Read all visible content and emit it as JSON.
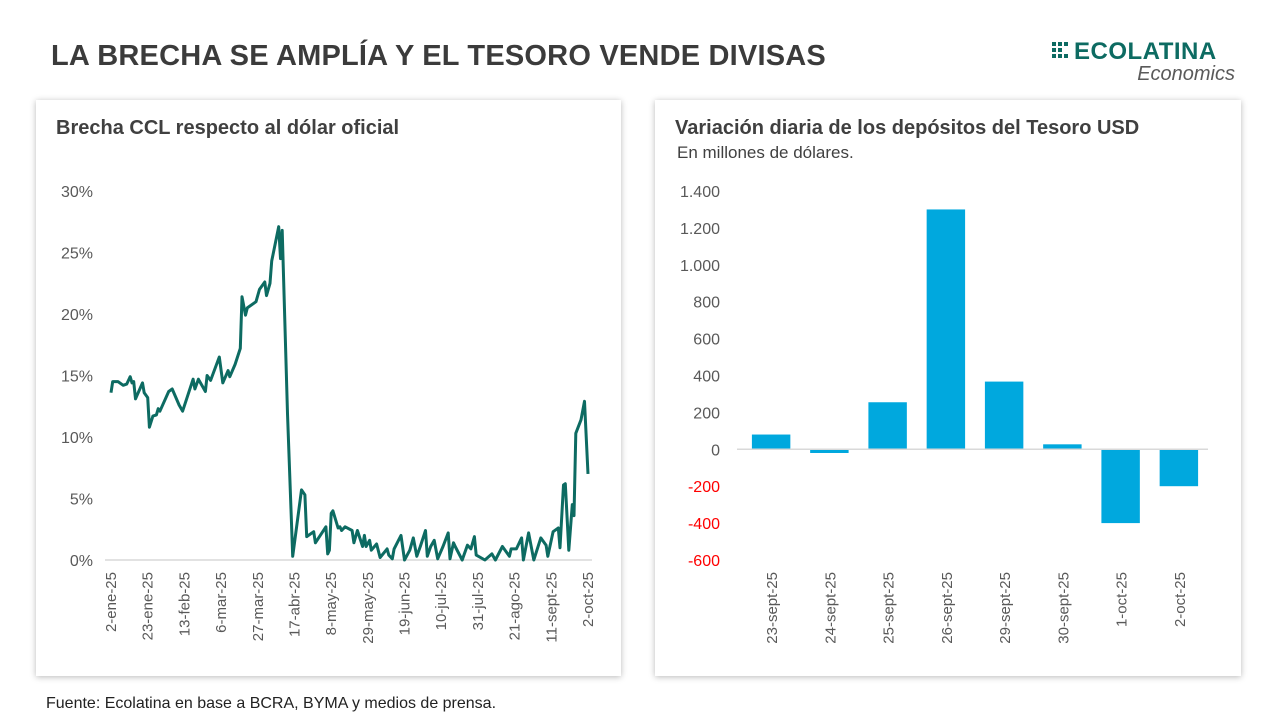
{
  "header": {
    "title": "LA BRECHA SE AMPLÍA Y EL TESORO VENDE DIVISAS",
    "logo_name": "ECOLATINA",
    "logo_sub": "Economics"
  },
  "footer": {
    "source": "Fuente: Ecolatina en base a BCRA, BYMA y medios de prensa."
  },
  "colors": {
    "line": "#0d6b62",
    "bar": "#00a8de",
    "negative_label": "#ff0000",
    "axis_text": "#595959"
  },
  "chart_data": [
    {
      "type": "line",
      "title": "Brecha CCL respecto al dólar oficial",
      "xlabel": "",
      "ylabel": "",
      "x_unit": "days since 2-ene-25",
      "ylim": [
        0,
        30
      ],
      "y_ticks": [
        0,
        5,
        10,
        15,
        20,
        25,
        30
      ],
      "y_tick_labels": [
        "0%",
        "5%",
        "10%",
        "15%",
        "20%",
        "25%",
        "30%"
      ],
      "x_ticks": [
        0,
        21,
        42,
        63,
        84,
        105,
        126,
        147,
        168,
        189,
        210,
        231,
        252,
        273
      ],
      "x_tick_labels": [
        "2-ene-25",
        "23-ene-25",
        "13-feb-25",
        "6-mar-25",
        "27-mar-25",
        "17-abr-25",
        "8-may-25",
        "29-may-25",
        "19-jun-25",
        "10-jul-25",
        "31-jul-25",
        "21-ago-25",
        "11-sept-25",
        "2-oct-25"
      ],
      "xlim": [
        0,
        273
      ],
      "grid": false,
      "series": [
        {
          "name": "Brecha CCL",
          "x": [
            0,
            1,
            4,
            7,
            9,
            11,
            12,
            13,
            14,
            18,
            19,
            21,
            22,
            24,
            26,
            27,
            28,
            33,
            35,
            39,
            41,
            47,
            48,
            50,
            54,
            55,
            57,
            62,
            64,
            67,
            68,
            71,
            74,
            75,
            77,
            78,
            83,
            85,
            88,
            89,
            91,
            92,
            96,
            97,
            98,
            101,
            104,
            109,
            111,
            112,
            116,
            117,
            123,
            124,
            125,
            126,
            127,
            130,
            131,
            132,
            134,
            138,
            139,
            141,
            144,
            145,
            146,
            148,
            149,
            152,
            154,
            158,
            159,
            161,
            162,
            166,
            168,
            171,
            173,
            175,
            177,
            180,
            181,
            183,
            185,
            187,
            190,
            193,
            194,
            196,
            197,
            201,
            204,
            206,
            208,
            209,
            214,
            218,
            220,
            224,
            228,
            229,
            232,
            235,
            236,
            239,
            242,
            246,
            249,
            250,
            253,
            256,
            257,
            259,
            260,
            262,
            264,
            265,
            266,
            269,
            271,
            273
          ],
          "values": [
            13.6,
            14.5,
            14.5,
            14.2,
            14.3,
            14.9,
            14.4,
            14.5,
            13.1,
            14.4,
            13.6,
            13.2,
            10.8,
            11.7,
            11.8,
            12.3,
            12.1,
            13.7,
            13.9,
            12.6,
            12.1,
            14.7,
            13.9,
            14.7,
            13.7,
            15.0,
            14.6,
            16.5,
            14.4,
            15.4,
            14.9,
            15.9,
            17.2,
            21.4,
            19.9,
            20.5,
            21.0,
            22.0,
            22.6,
            21.5,
            22.5,
            24.3,
            27.1,
            24.5,
            26.8,
            11.9,
            0.3,
            5.7,
            5.3,
            1.9,
            2.3,
            1.4,
            2.7,
            0.5,
            0.8,
            3.8,
            4.0,
            2.6,
            2.7,
            2.4,
            2.7,
            2.4,
            1.4,
            2.4,
            1.1,
            2.0,
            1.1,
            1.6,
            0.8,
            1.3,
            0.2,
            0.9,
            0.4,
            0.1,
            0.9,
            2.0,
            0.0,
            0.8,
            1.8,
            0.3,
            1.1,
            2.4,
            0.3,
            1.1,
            1.6,
            0.1,
            1.1,
            2.2,
            0.1,
            1.4,
            1.1,
            0.0,
            1.2,
            0.9,
            1.9,
            0.4,
            0.0,
            0.5,
            0.0,
            1.1,
            0.3,
            0.9,
            0.9,
            1.8,
            0.0,
            2.2,
            0.0,
            1.8,
            1.2,
            0.3,
            2.3,
            2.6,
            1.0,
            6.1,
            6.2,
            0.8,
            4.5,
            3.6,
            10.3,
            11.4,
            12.9,
            7.0
          ]
        }
      ]
    },
    {
      "type": "bar",
      "title": "Variación diaria de los depósitos del Tesoro USD",
      "subtitle": "En millones de dólares.",
      "xlabel": "",
      "ylabel": "",
      "ylim": [
        -600,
        1400
      ],
      "y_ticks": [
        -600,
        -400,
        -200,
        0,
        200,
        400,
        600,
        800,
        1000,
        1200,
        1400
      ],
      "y_tick_labels": [
        "-600",
        "-400",
        "-200",
        "0",
        "200",
        "400",
        "600",
        "800",
        "1.000",
        "1.200",
        "1.400"
      ],
      "categories": [
        "23-sept-25",
        "24-sept-25",
        "25-sept-25",
        "26-sept-25",
        "29-sept-25",
        "30-sept-25",
        "1-oct-25",
        "2-oct-25"
      ],
      "values": [
        80,
        -20,
        255,
        1300,
        367,
        27,
        -400,
        -200
      ],
      "grid": false
    }
  ]
}
